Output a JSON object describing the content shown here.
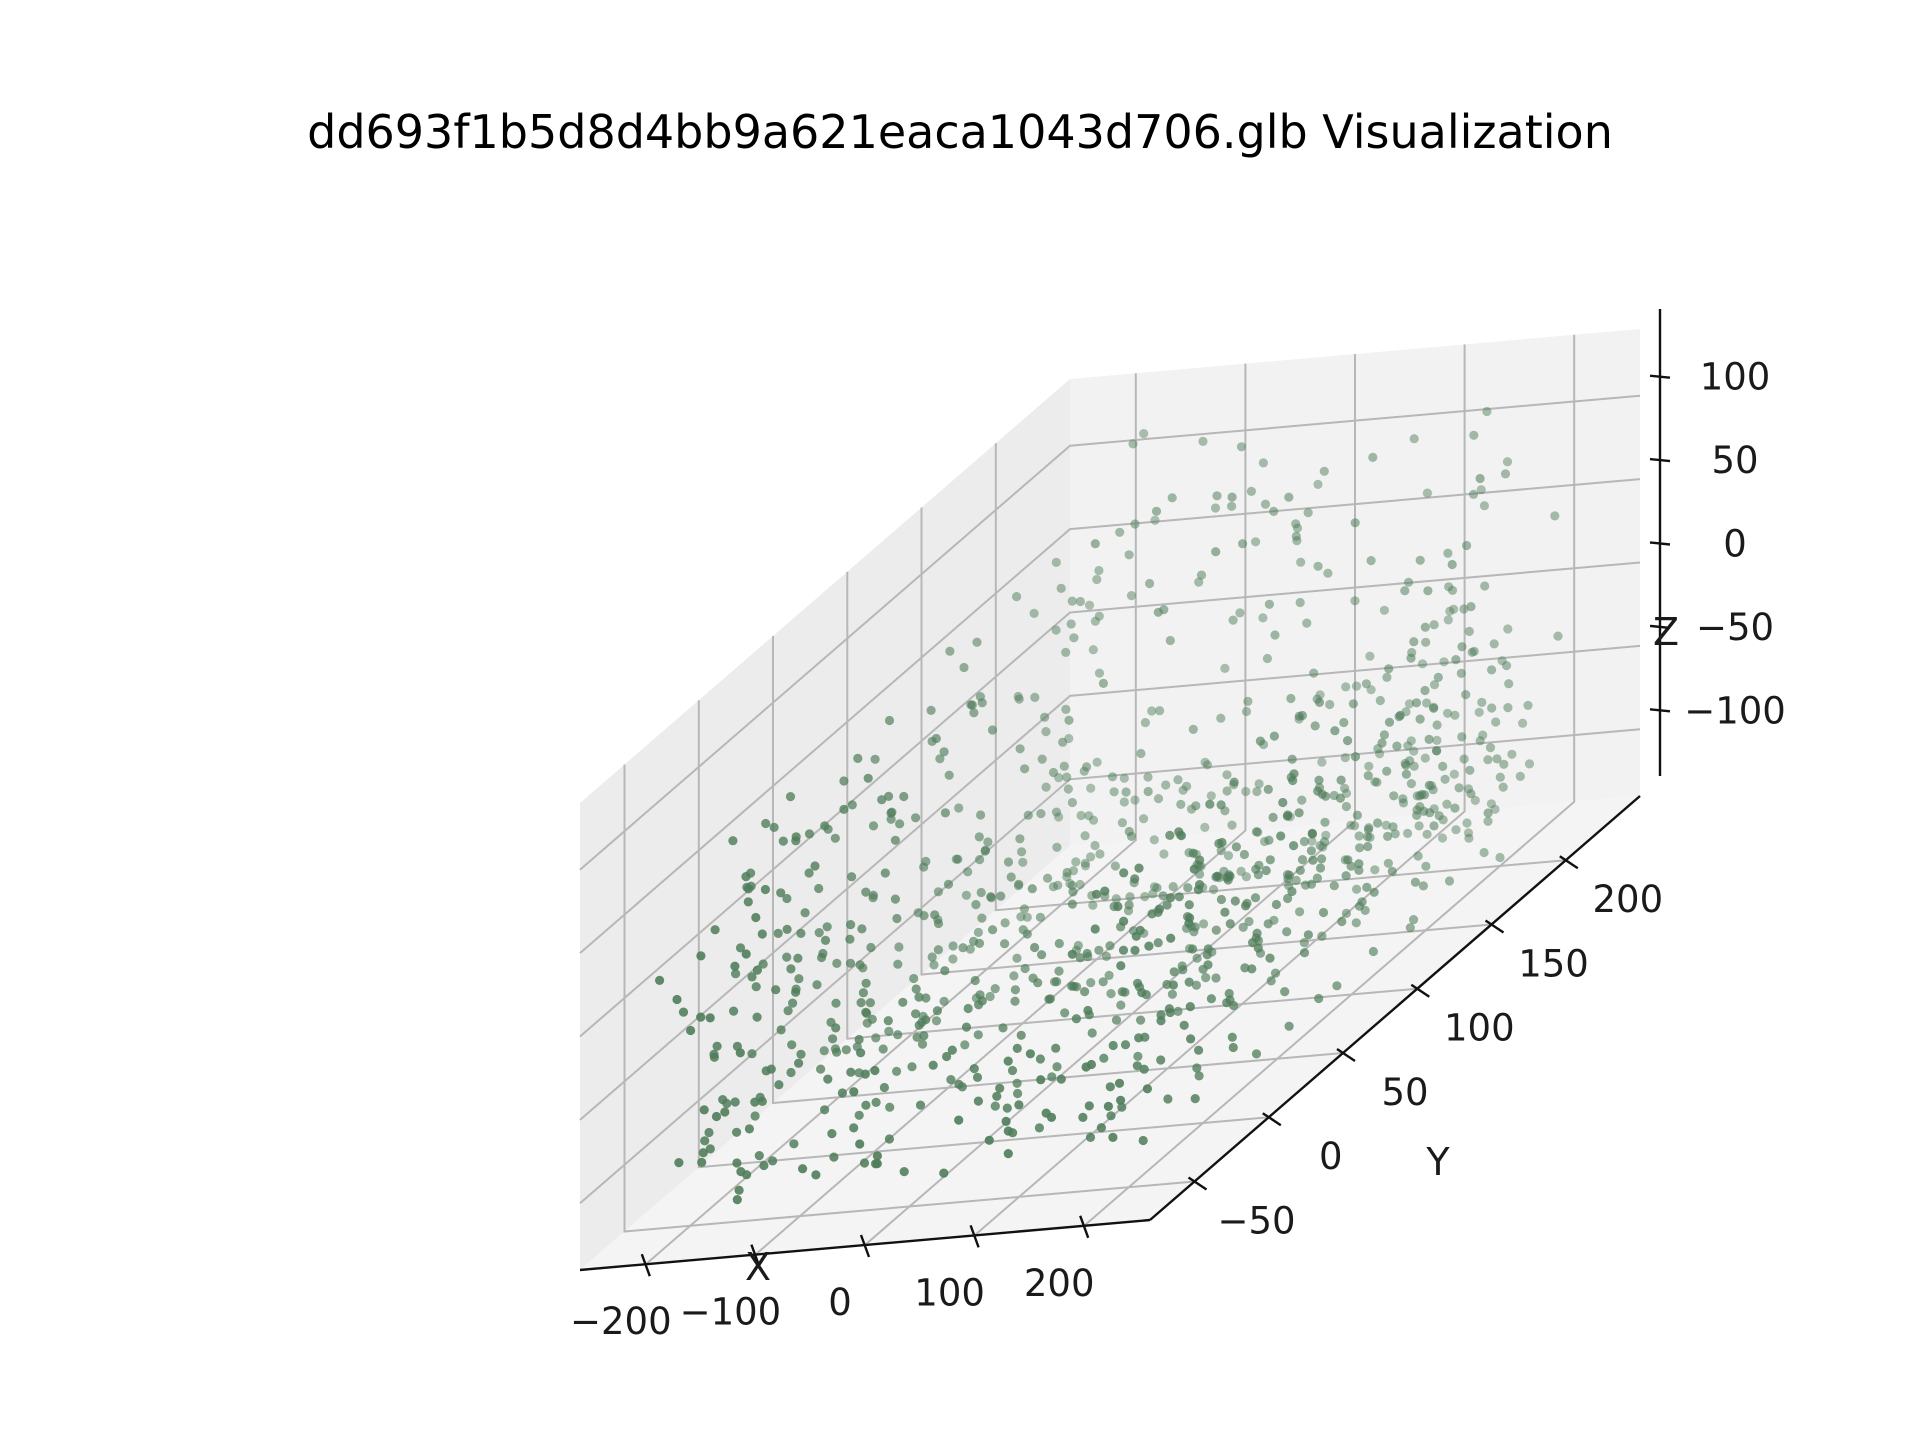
{
  "chart_data": {
    "type": "scatter",
    "projection": "3d",
    "title": "dd693f1b5d8d4bb9a621eaca1043d706.glb Visualization",
    "xlabel": "X",
    "ylabel": "Y",
    "zlabel": "Z",
    "xlim": [
      -260,
      260
    ],
    "ylim": [
      -80,
      250
    ],
    "zlim": [
      -140,
      140
    ],
    "xticks": [
      -200,
      -100,
      0,
      100,
      200
    ],
    "xtick_labels": [
      "−200",
      "−100",
      "0",
      "100",
      "200"
    ],
    "yticks": [
      -50,
      0,
      50,
      100,
      150,
      200
    ],
    "ytick_labels": [
      "−50",
      "0",
      "50",
      "100",
      "150",
      "200"
    ],
    "zticks": [
      -100,
      -50,
      0,
      50,
      100
    ],
    "ztick_labels": [
      "−100",
      "−50",
      "0",
      "50",
      "100"
    ],
    "grid": true,
    "marker_color": "#4f7d5a",
    "pane_colors": {
      "left": "#ececec",
      "back": "#f2f2f2",
      "floor": "#f4f4f4"
    },
    "series": [
      {
        "point_count": 1000,
        "description_regions": [
          {
            "x": [
              -230,
              -150
            ],
            "y": [
              -60,
              220
            ],
            "z": [
              -130,
              60
            ]
          },
          {
            "x": [
              -200,
              220
            ],
            "y": [
              -60,
              220
            ],
            "z": [
              -130,
              -60
            ]
          },
          {
            "x": [
              -150,
              250
            ],
            "y": [
              150,
              220
            ],
            "z": [
              -130,
              130
            ]
          },
          {
            "x": [
              100,
              220
            ],
            "y": [
              -20,
              220
            ],
            "z": [
              -90,
              20
            ]
          }
        ]
      }
    ]
  }
}
